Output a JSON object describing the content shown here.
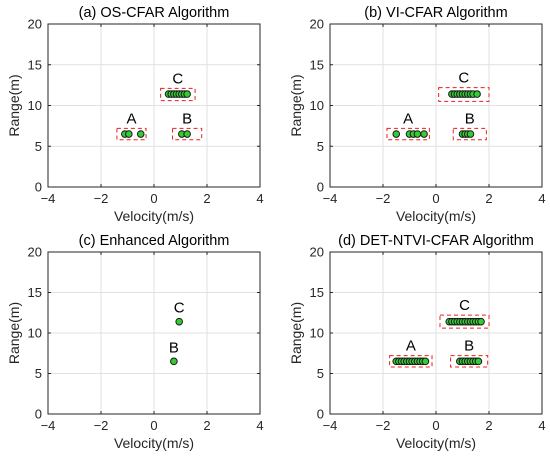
{
  "chart_data": [
    {
      "type": "scatter",
      "title": "(a) OS-CFAR Algorithm",
      "xlabel": "Velocity(m/s)",
      "ylabel": "Range(m)",
      "xlim": [
        -4,
        4
      ],
      "ylim": [
        0,
        20
      ],
      "xticks": [
        "−4",
        "−2",
        "0",
        "2",
        "4"
      ],
      "yticks": [
        "0",
        "5",
        "10",
        "15",
        "20"
      ],
      "grid": true,
      "marker_color": "#33cc33",
      "box_color": "#e8211c",
      "clusters": [
        {
          "label": "A",
          "points": [
            [
              -1.1,
              6.5
            ],
            [
              -0.95,
              6.5
            ],
            [
              -0.5,
              6.5
            ]
          ],
          "box": {
            "x": [
              -1.4,
              -0.3
            ],
            "y": [
              5.8,
              7.2
            ]
          }
        },
        {
          "label": "B",
          "points": [
            [
              1.05,
              6.5
            ],
            [
              1.25,
              6.5
            ]
          ],
          "box": {
            "x": [
              0.7,
              1.8
            ],
            "y": [
              5.8,
              7.2
            ]
          }
        },
        {
          "label": "C",
          "points": [
            [
              0.55,
              11.4
            ],
            [
              0.65,
              11.4
            ],
            [
              0.75,
              11.4
            ],
            [
              0.85,
              11.4
            ],
            [
              0.95,
              11.4
            ],
            [
              1.05,
              11.4
            ],
            [
              1.15,
              11.4
            ],
            [
              1.25,
              11.4
            ]
          ],
          "box": {
            "x": [
              0.25,
              1.55
            ],
            "y": [
              10.6,
              12.1
            ]
          }
        }
      ]
    },
    {
      "type": "scatter",
      "title": "(b) VI-CFAR Algorithm",
      "xlabel": "Velocity(m/s)",
      "ylabel": "Range(m)",
      "xlim": [
        -4,
        4
      ],
      "ylim": [
        0,
        20
      ],
      "xticks": [
        "−4",
        "−2",
        "0",
        "2",
        "4"
      ],
      "yticks": [
        "0",
        "5",
        "10",
        "15",
        "20"
      ],
      "grid": true,
      "marker_color": "#33cc33",
      "box_color": "#e8211c",
      "clusters": [
        {
          "label": "A",
          "points": [
            [
              -1.5,
              6.5
            ],
            [
              -1.0,
              6.5
            ],
            [
              -0.85,
              6.5
            ],
            [
              -0.7,
              6.5
            ],
            [
              -0.45,
              6.5
            ]
          ],
          "box": {
            "x": [
              -1.85,
              -0.25
            ],
            "y": [
              5.8,
              7.2
            ]
          }
        },
        {
          "label": "B",
          "points": [
            [
              1.0,
              6.5
            ],
            [
              1.1,
              6.5
            ],
            [
              1.2,
              6.5
            ],
            [
              1.3,
              6.5
            ]
          ],
          "box": {
            "x": [
              0.65,
              1.9
            ],
            "y": [
              5.8,
              7.2
            ]
          }
        },
        {
          "label": "C",
          "points": [
            [
              0.6,
              11.4
            ],
            [
              0.7,
              11.4
            ],
            [
              0.8,
              11.4
            ],
            [
              0.9,
              11.4
            ],
            [
              1.0,
              11.4
            ],
            [
              1.1,
              11.4
            ],
            [
              1.2,
              11.4
            ],
            [
              1.3,
              11.4
            ],
            [
              1.4,
              11.4
            ],
            [
              1.55,
              11.4
            ]
          ],
          "box": {
            "x": [
              0.1,
              2.0
            ],
            "y": [
              10.5,
              12.2
            ]
          }
        }
      ]
    },
    {
      "type": "scatter",
      "title": "(c) Enhanced Algorithm",
      "xlabel": "Velocity(m/s)",
      "ylabel": "Range(m)",
      "xlim": [
        -4,
        4
      ],
      "ylim": [
        0,
        20
      ],
      "xticks": [
        "−4",
        "−2",
        "0",
        "2",
        "4"
      ],
      "yticks": [
        "0",
        "5",
        "10",
        "15",
        "20"
      ],
      "grid": true,
      "marker_color": "#33cc33",
      "box_color": "#e8211c",
      "clusters": [
        {
          "label": "B",
          "points": [
            [
              0.75,
              6.5
            ]
          ],
          "box": null
        },
        {
          "label": "C",
          "points": [
            [
              0.95,
              11.4
            ]
          ],
          "box": null
        }
      ]
    },
    {
      "type": "scatter",
      "title": "(d) DET-NTVI-CFAR Algorithm",
      "xlabel": "Velocity(m/s)",
      "ylabel": "Range(m)",
      "xlim": [
        -4,
        4
      ],
      "ylim": [
        0,
        20
      ],
      "xticks": [
        "−4",
        "−2",
        "0",
        "2",
        "4"
      ],
      "yticks": [
        "0",
        "5",
        "10",
        "15",
        "20"
      ],
      "grid": true,
      "marker_color": "#33cc33",
      "box_color": "#e8211c",
      "clusters": [
        {
          "label": "A",
          "points": [
            [
              -1.5,
              6.5
            ],
            [
              -1.4,
              6.5
            ],
            [
              -1.3,
              6.5
            ],
            [
              -1.2,
              6.5
            ],
            [
              -1.1,
              6.5
            ],
            [
              -1.0,
              6.5
            ],
            [
              -0.9,
              6.5
            ],
            [
              -0.8,
              6.5
            ],
            [
              -0.7,
              6.5
            ],
            [
              -0.6,
              6.5
            ],
            [
              -0.5,
              6.5
            ],
            [
              -0.4,
              6.5
            ]
          ],
          "box": {
            "x": [
              -1.75,
              -0.15
            ],
            "y": [
              5.8,
              7.2
            ]
          }
        },
        {
          "label": "B",
          "points": [
            [
              0.9,
              6.5
            ],
            [
              1.0,
              6.5
            ],
            [
              1.1,
              6.5
            ],
            [
              1.2,
              6.5
            ],
            [
              1.3,
              6.5
            ],
            [
              1.4,
              6.5
            ],
            [
              1.5,
              6.5
            ],
            [
              1.6,
              6.5
            ]
          ],
          "box": {
            "x": [
              0.55,
              1.95
            ],
            "y": [
              5.8,
              7.2
            ]
          }
        },
        {
          "label": "C",
          "points": [
            [
              0.5,
              11.4
            ],
            [
              0.6,
              11.4
            ],
            [
              0.7,
              11.4
            ],
            [
              0.8,
              11.4
            ],
            [
              0.9,
              11.4
            ],
            [
              1.0,
              11.4
            ],
            [
              1.1,
              11.4
            ],
            [
              1.2,
              11.4
            ],
            [
              1.3,
              11.4
            ],
            [
              1.4,
              11.4
            ],
            [
              1.5,
              11.4
            ],
            [
              1.6,
              11.4
            ],
            [
              1.7,
              11.4
            ]
          ],
          "box": {
            "x": [
              0.15,
              2.0
            ],
            "y": [
              10.6,
              12.2
            ]
          }
        }
      ]
    }
  ]
}
